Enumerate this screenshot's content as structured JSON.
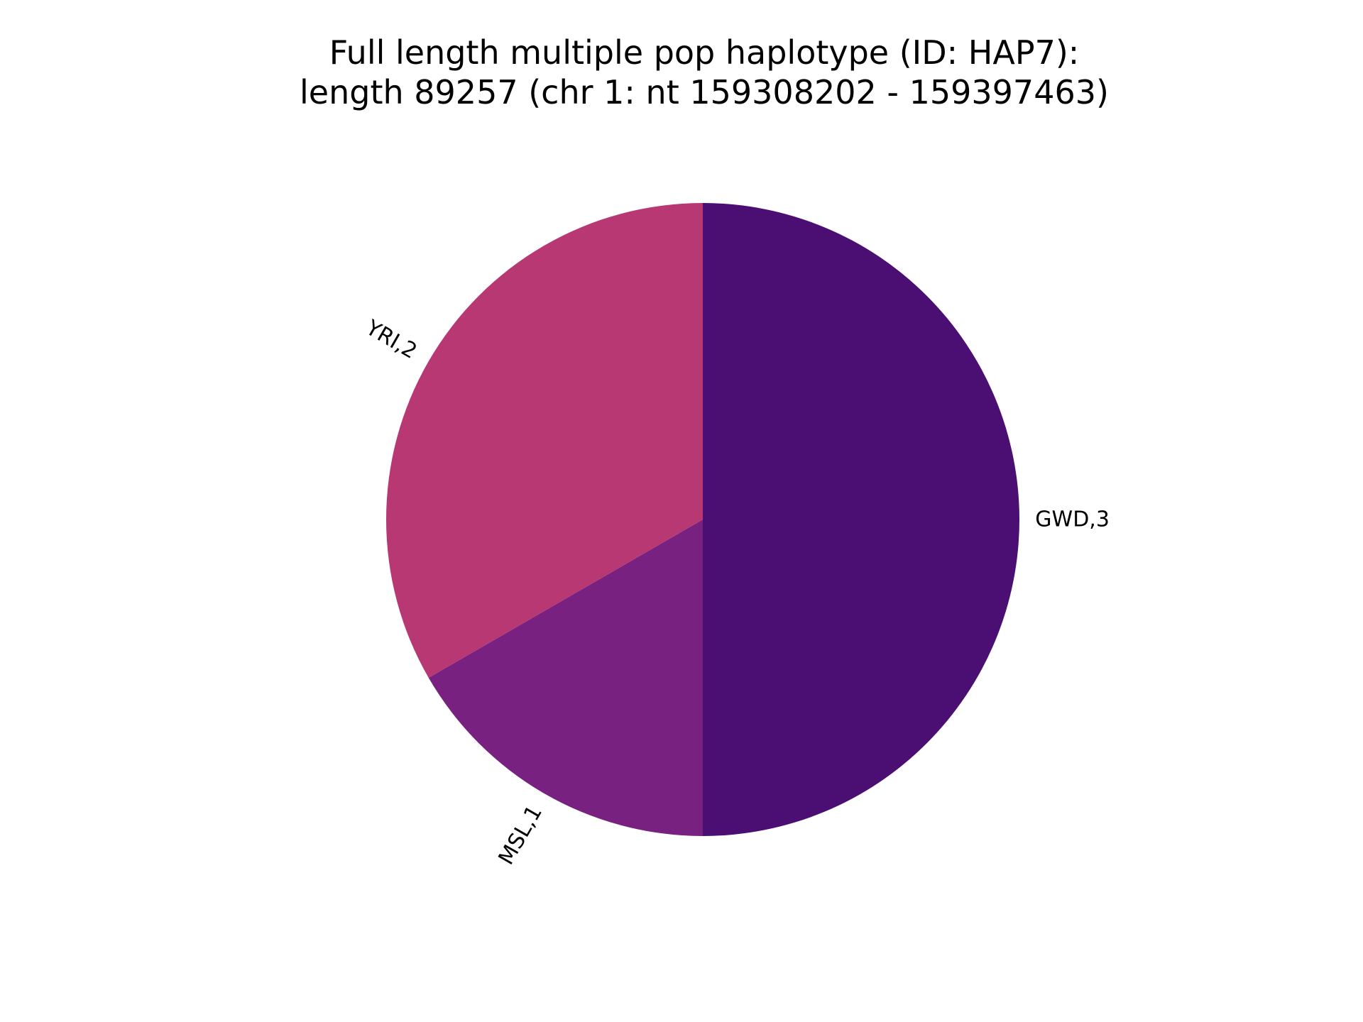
{
  "title_lines": [
    "Full length multiple pop haplotype (ID: HAP7):",
    "length 89257 (chr 1: nt 159308202 - 159397463)"
  ],
  "chart_data": {
    "type": "pie",
    "title": "Full length multiple pop haplotype (ID: HAP7): length 89257 (chr 1: nt 159308202 - 159397463)",
    "start_angle_deg": 90,
    "direction": "clockwise",
    "slices": [
      {
        "label": "GWD,3",
        "value": 3,
        "color": "#4b0f74"
      },
      {
        "label": "MSL,1",
        "value": 1,
        "color": "#782180"
      },
      {
        "label": "YRI,2",
        "value": 2,
        "color": "#b83874"
      }
    ],
    "legend": "none"
  }
}
